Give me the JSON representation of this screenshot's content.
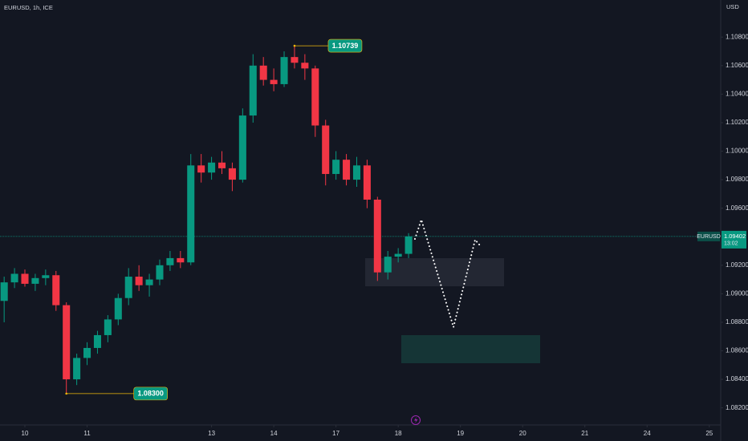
{
  "chart_data": {
    "type": "candlestick",
    "title": "EURUSD, 1h, ICE",
    "currency": "USD",
    "symbol_tag": "EURUSD",
    "up_color": "#089981",
    "down_color": "#f23645",
    "last_price": {
      "value": 1.09402,
      "label": "1.09402"
    },
    "countdown": "13:02",
    "x": [
      -8,
      -4,
      0,
      4,
      8,
      12,
      16,
      20,
      24,
      28,
      32,
      36,
      40,
      44,
      48,
      52,
      56,
      60,
      64,
      68,
      72,
      76,
      80,
      84,
      88,
      92,
      96,
      100,
      104,
      108,
      112,
      116,
      120,
      124,
      128,
      132,
      136,
      140,
      144,
      148
    ],
    "open": [
      1.0895,
      1.0908,
      1.0914,
      1.0907,
      1.0911,
      1.0913,
      1.0892,
      1.084,
      1.0855,
      1.0862,
      1.0871,
      1.0882,
      1.0897,
      1.0912,
      1.0906,
      1.091,
      1.092,
      1.0925,
      1.0922,
      1.099,
      1.0985,
      1.0992,
      1.0988,
      1.098,
      1.1025,
      1.106,
      1.105,
      1.1047,
      1.1066,
      1.1062,
      1.1058,
      1.1018,
      1.0984,
      1.0994,
      1.098,
      1.099,
      1.0966,
      1.0915,
      1.0926,
      1.0928
    ],
    "high": [
      1.0912,
      1.0918,
      1.0917,
      1.0914,
      1.0917,
      1.0916,
      1.0894,
      1.0858,
      1.0866,
      1.0874,
      1.0885,
      1.09,
      1.0918,
      1.092,
      1.0914,
      1.0924,
      1.093,
      1.093,
      1.0998,
      1.0998,
      1.0996,
      1.1,
      1.0992,
      1.103,
      1.1068,
      1.1066,
      1.1058,
      1.107,
      1.10739,
      1.1068,
      1.106,
      1.1022,
      1.1,
      1.0998,
      1.0996,
      1.0994,
      1.0968,
      1.093,
      1.0932,
      1.09425
    ],
    "low": [
      1.088,
      1.0904,
      1.0905,
      1.0902,
      1.0906,
      1.0888,
      1.083,
      1.0836,
      1.085,
      1.0858,
      1.0866,
      1.0878,
      1.0892,
      1.0902,
      1.0898,
      1.0906,
      1.0916,
      1.0918,
      1.092,
      1.0978,
      1.098,
      1.0984,
      1.0972,
      1.0978,
      1.102,
      1.1046,
      1.1042,
      1.1045,
      1.1058,
      1.105,
      1.101,
      1.0976,
      1.098,
      1.0976,
      1.0975,
      1.096,
      1.0909,
      1.091,
      1.0922,
      1.0925
    ],
    "close": [
      1.0908,
      1.0914,
      1.0907,
      1.0911,
      1.0913,
      1.0892,
      1.084,
      1.0855,
      1.0862,
      1.0871,
      1.0882,
      1.0897,
      1.0912,
      1.0906,
      1.091,
      1.092,
      1.0925,
      1.0922,
      1.099,
      1.0985,
      1.0992,
      1.0988,
      1.098,
      1.1025,
      1.106,
      1.105,
      1.1047,
      1.1066,
      1.1062,
      1.1058,
      1.1018,
      1.0984,
      1.0994,
      1.098,
      1.099,
      1.0966,
      1.0915,
      1.0926,
      1.0928,
      1.09402
    ],
    "xlim": [
      -9.6,
      268.4
    ],
    "xticks": [
      {
        "value": 0,
        "label": "10"
      },
      {
        "value": 24,
        "label": "11"
      },
      {
        "value": 72,
        "label": "13"
      },
      {
        "value": 96,
        "label": "14"
      },
      {
        "value": 120,
        "label": "17"
      },
      {
        "value": 144,
        "label": "18"
      },
      {
        "value": 168,
        "label": "19"
      },
      {
        "value": 192,
        "label": "20"
      },
      {
        "value": 216,
        "label": "21"
      },
      {
        "value": 240,
        "label": "24"
      },
      {
        "value": 264,
        "label": "25"
      }
    ],
    "ylim": [
      1.0808,
      1.1106
    ],
    "yticks": [
      {
        "value": 1.082,
        "label": "1.08200"
      },
      {
        "value": 1.084,
        "label": "1.08400"
      },
      {
        "value": 1.086,
        "label": "1.08600"
      },
      {
        "value": 1.088,
        "label": "1.08800"
      },
      {
        "value": 1.09,
        "label": "1.09000"
      },
      {
        "value": 1.092,
        "label": "1.09200"
      },
      {
        "value": 1.096,
        "label": "1.09600"
      },
      {
        "value": 1.098,
        "label": "1.09800"
      },
      {
        "value": 1.1,
        "label": "1.10000"
      },
      {
        "value": 1.102,
        "label": "1.10200"
      },
      {
        "value": 1.104,
        "label": "1.10400"
      },
      {
        "value": 1.106,
        "label": "1.10600"
      },
      {
        "value": 1.108,
        "label": "1.10800"
      }
    ],
    "annotations": [
      {
        "x": 104,
        "value": 1.10739,
        "label": "1.10739"
      },
      {
        "x": 16,
        "value": 1.083,
        "label": "1.08300"
      }
    ]
  }
}
